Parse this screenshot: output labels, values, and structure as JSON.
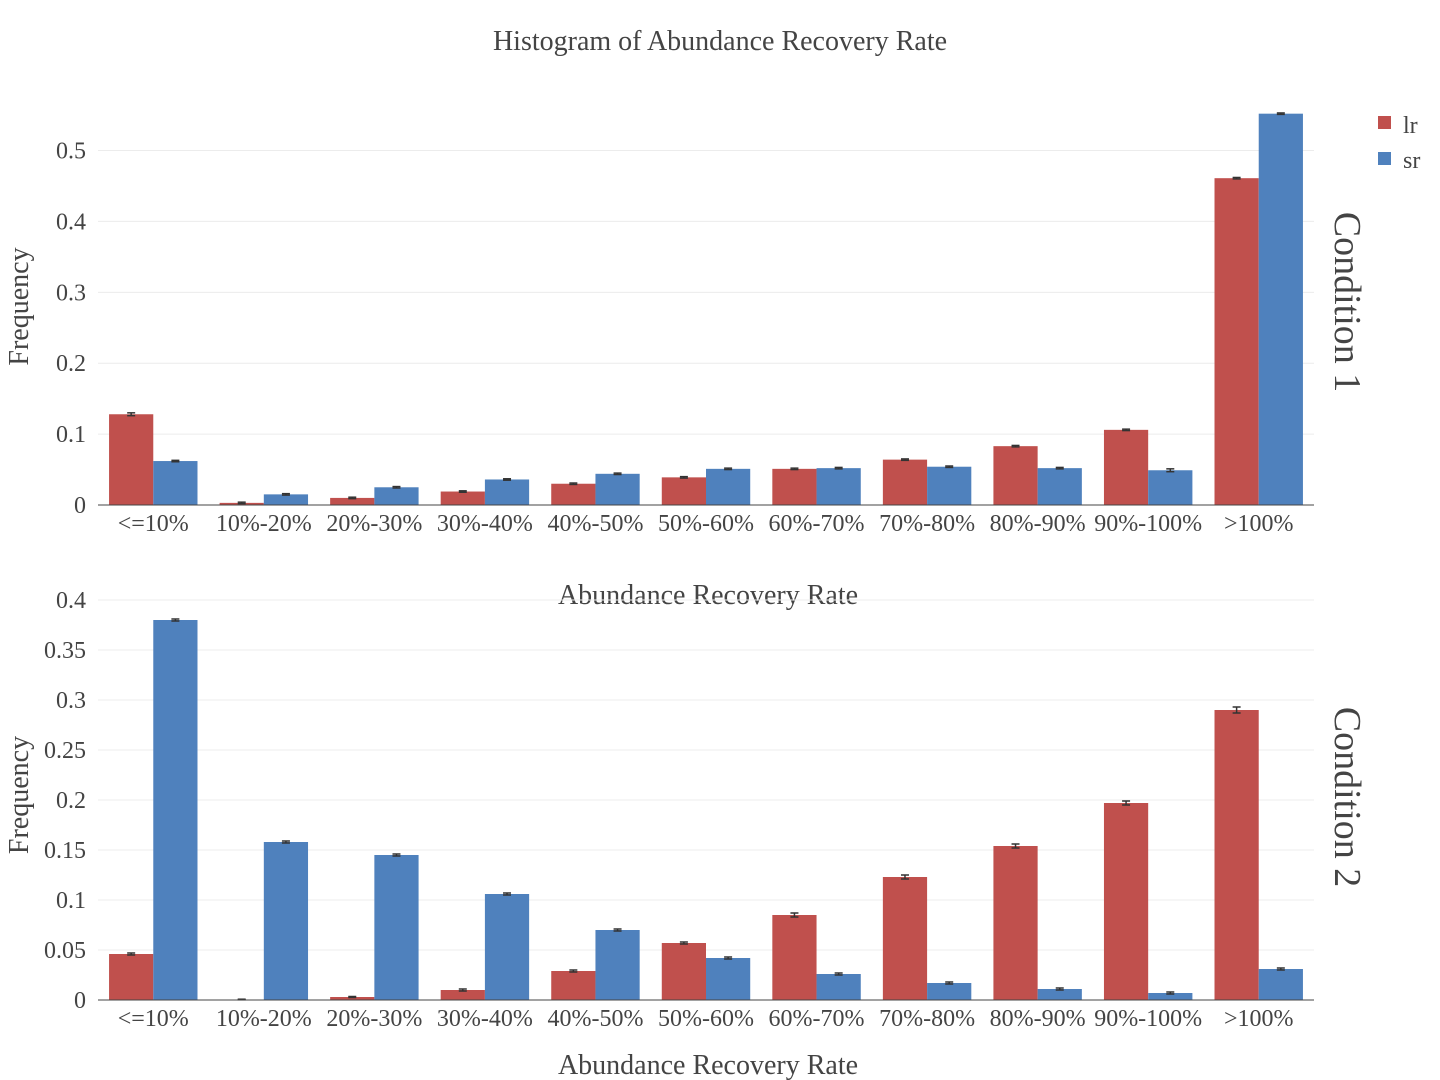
{
  "title": "Histogram of Abundance Recovery Rate",
  "legend": [
    {
      "name": "lr",
      "color": "#c0504d"
    },
    {
      "name": "sr",
      "color": "#4f81bd"
    }
  ],
  "chart_data": [
    {
      "type": "bar",
      "facet": "Condition 1",
      "xlabel": "Abundance Recovery Rate",
      "ylabel": "Frequency",
      "ylim": [
        0,
        0.56
      ],
      "yticks": [
        0,
        0.1,
        0.2,
        0.3,
        0.4,
        0.5
      ],
      "ytick_labels": [
        "0",
        "0.1",
        "0.2",
        "0.3",
        "0.4",
        "0.5"
      ],
      "categories": [
        "<=10%",
        "10%-20%",
        "20%-30%",
        "30%-40%",
        "40%-50%",
        "50%-60%",
        "60%-70%",
        "70%-80%",
        "80%-90%",
        "90%-100%",
        ">100%"
      ],
      "series": [
        {
          "name": "lr",
          "color": "#c0504d",
          "values": [
            0.128,
            0.003,
            0.01,
            0.019,
            0.03,
            0.039,
            0.051,
            0.064,
            0.083,
            0.106,
            0.461
          ],
          "errors": [
            0.002,
            0.001,
            0.001,
            0.001,
            0.001,
            0.001,
            0.001,
            0.001,
            0.001,
            0.001,
            0.001
          ]
        },
        {
          "name": "sr",
          "color": "#4f81bd",
          "values": [
            0.062,
            0.015,
            0.025,
            0.036,
            0.044,
            0.051,
            0.052,
            0.054,
            0.052,
            0.049,
            0.552
          ],
          "errors": [
            0.001,
            0.001,
            0.001,
            0.001,
            0.001,
            0.001,
            0.001,
            0.001,
            0.001,
            0.002,
            0.001
          ]
        }
      ]
    },
    {
      "type": "bar",
      "facet": "Condition 2",
      "xlabel": "Abundance Recovery Rate",
      "ylabel": "Frequency",
      "ylim": [
        0,
        0.41
      ],
      "yticks": [
        0,
        0.05,
        0.1,
        0.15,
        0.2,
        0.25,
        0.3,
        0.35,
        0.4
      ],
      "ytick_labels": [
        "0",
        "0.05",
        "0.1",
        "0.15",
        "0.2",
        "0.25",
        "0.3",
        "0.35",
        "0.4"
      ],
      "categories": [
        "<=10%",
        "10%-20%",
        "20%-30%",
        "30%-40%",
        "40%-50%",
        "50%-60%",
        "60%-70%",
        "70%-80%",
        "80%-90%",
        "90%-100%",
        ">100%"
      ],
      "series": [
        {
          "name": "lr",
          "color": "#c0504d",
          "values": [
            0.046,
            0.0005,
            0.003,
            0.01,
            0.029,
            0.057,
            0.085,
            0.123,
            0.154,
            0.197,
            0.29
          ],
          "errors": [
            0.001,
            0.0003,
            0.0005,
            0.001,
            0.001,
            0.001,
            0.002,
            0.002,
            0.002,
            0.002,
            0.003
          ]
        },
        {
          "name": "sr",
          "color": "#4f81bd",
          "values": [
            0.38,
            0.158,
            0.145,
            0.106,
            0.07,
            0.042,
            0.026,
            0.017,
            0.011,
            0.007,
            0.031
          ],
          "errors": [
            0.001,
            0.001,
            0.001,
            0.001,
            0.001,
            0.001,
            0.001,
            0.001,
            0.001,
            0.001,
            0.001
          ]
        }
      ]
    }
  ]
}
